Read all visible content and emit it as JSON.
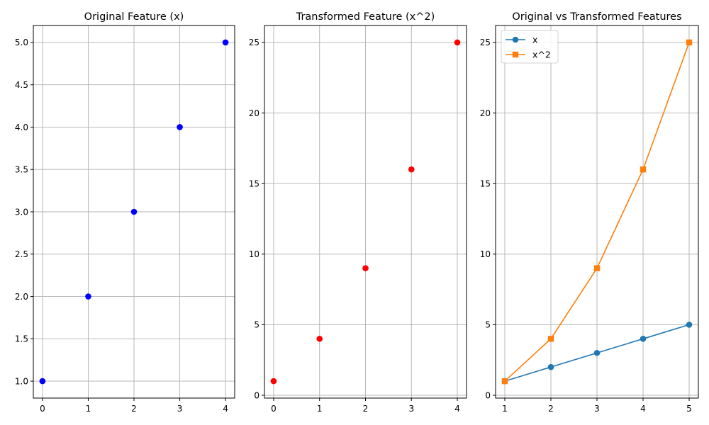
{
  "chart_data": [
    {
      "type": "scatter",
      "title": "Original Feature (x)",
      "xlabel": "",
      "ylabel": "",
      "x": [
        0,
        1,
        2,
        3,
        4
      ],
      "y": [
        1,
        2,
        3,
        4,
        5
      ],
      "xlim": [
        -0.2,
        4.2
      ],
      "ylim": [
        0.8,
        5.2
      ],
      "xticks": [
        0,
        1,
        2,
        3,
        4
      ],
      "xtick_labels": [
        "0",
        "1",
        "2",
        "3",
        "4"
      ],
      "yticks": [
        1.0,
        1.5,
        2.0,
        2.5,
        3.0,
        3.5,
        4.0,
        4.5,
        5.0
      ],
      "ytick_labels": [
        "1.0",
        "1.5",
        "2.0",
        "2.5",
        "3.0",
        "3.5",
        "4.0",
        "4.5",
        "5.0"
      ],
      "color": "#0000ff",
      "grid": true
    },
    {
      "type": "scatter",
      "title": "Transformed Feature (x^2)",
      "xlabel": "",
      "ylabel": "",
      "x": [
        0,
        1,
        2,
        3,
        4
      ],
      "y": [
        1,
        4,
        9,
        16,
        25
      ],
      "xlim": [
        -0.2,
        4.2
      ],
      "ylim": [
        -0.2,
        26.2
      ],
      "xticks": [
        0,
        1,
        2,
        3,
        4
      ],
      "xtick_labels": [
        "0",
        "1",
        "2",
        "3",
        "4"
      ],
      "yticks": [
        0,
        5,
        10,
        15,
        20,
        25
      ],
      "ytick_labels": [
        "0",
        "5",
        "10",
        "15",
        "20",
        "25"
      ],
      "color": "#ff0000",
      "grid": true
    },
    {
      "type": "line",
      "title": "Original vs Transformed Features",
      "xlabel": "",
      "ylabel": "",
      "x": [
        1,
        2,
        3,
        4,
        5
      ],
      "series": [
        {
          "name": "x",
          "values": [
            1,
            2,
            3,
            4,
            5
          ],
          "color": "#1f77b4",
          "marker": "circle"
        },
        {
          "name": "x^2",
          "values": [
            1,
            4,
            9,
            16,
            25
          ],
          "color": "#ff7f0e",
          "marker": "square"
        }
      ],
      "xlim": [
        0.8,
        5.2
      ],
      "ylim": [
        -0.2,
        26.2
      ],
      "xticks": [
        1,
        2,
        3,
        4,
        5
      ],
      "xtick_labels": [
        "1",
        "2",
        "3",
        "4",
        "5"
      ],
      "yticks": [
        0,
        5,
        10,
        15,
        20,
        25
      ],
      "ytick_labels": [
        "0",
        "5",
        "10",
        "15",
        "20",
        "25"
      ],
      "legend": "top-left",
      "grid": true
    }
  ]
}
